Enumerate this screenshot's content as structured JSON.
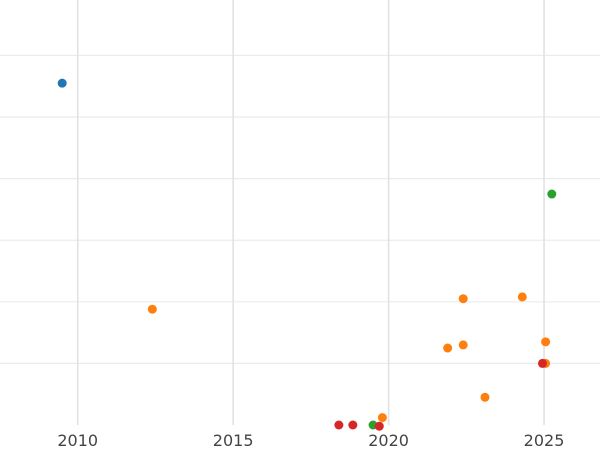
{
  "chart_data": {
    "type": "scatter",
    "title": "",
    "xlabel": "",
    "ylabel": "",
    "xlim": [
      2007.5,
      2026.8
    ],
    "ylim": [
      0,
      6.9
    ],
    "grid": true,
    "legend": "none",
    "x_ticks": [
      2010,
      2015,
      2020,
      2025
    ],
    "x_tick_labels": [
      "2010",
      "2015",
      "2020",
      "2025"
    ],
    "y_gridlines": [
      1,
      2,
      3,
      4,
      5,
      6,
      7
    ],
    "series_colors": [
      "#1f77b4",
      "#ff7f0e",
      "#2ca02c",
      "#d62728"
    ],
    "series": [
      {
        "color": "#1f77b4",
        "points": [
          [
            2009.5,
            5.55
          ]
        ]
      },
      {
        "color": "#ff7f0e",
        "points": [
          [
            2012.4,
            1.88
          ],
          [
            2019.8,
            0.12
          ],
          [
            2021.9,
            1.25
          ],
          [
            2022.4,
            2.05
          ],
          [
            2022.4,
            1.3
          ],
          [
            2023.1,
            0.45
          ],
          [
            2024.3,
            2.08
          ],
          [
            2025.05,
            1.35
          ],
          [
            2025.05,
            1.0
          ]
        ]
      },
      {
        "color": "#2ca02c",
        "points": [
          [
            2025.25,
            3.75
          ],
          [
            2019.5,
            0.0
          ]
        ]
      },
      {
        "color": "#d62728",
        "points": [
          [
            2018.4,
            0.0
          ],
          [
            2018.85,
            0.0
          ],
          [
            2019.7,
            -0.02
          ],
          [
            2024.95,
            1.0
          ]
        ]
      }
    ]
  }
}
